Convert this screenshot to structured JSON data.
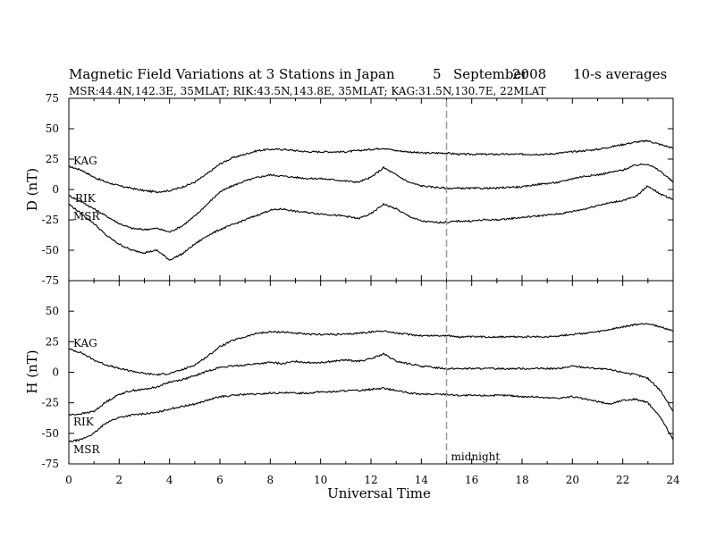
{
  "header": {
    "title": "Magnetic Field Variations at 3 Stations in Japan",
    "day": "5",
    "month": "September",
    "year": "2008",
    "averaging": "10-s averages",
    "stations": "MSR:44.4N,142.3E, 35MLAT;  RIK:43.5N,143.8E, 35MLAT;  KAG:31.5N,130.7E, 22MLAT"
  },
  "chart_data": [
    {
      "type": "line",
      "panel": "top",
      "ylabel": "D (nT)",
      "xlabel": "",
      "xlim": [
        0,
        24
      ],
      "ylim": [
        -75,
        75
      ],
      "yticks": [
        "75",
        "50",
        "25",
        "0",
        "-25",
        "-50",
        "-75"
      ],
      "series": [
        {
          "name": "KAG",
          "x": [
            0,
            0.5,
            1,
            1.5,
            2,
            2.5,
            3,
            3.5,
            4,
            4.5,
            5,
            5.5,
            6,
            6.5,
            7,
            7.5,
            8,
            8.5,
            9,
            9.5,
            10,
            10.5,
            11,
            11.5,
            12,
            12.5,
            13,
            13.5,
            14,
            14.5,
            15,
            15.5,
            16,
            16.5,
            17,
            17.5,
            18,
            18.5,
            19,
            19.5,
            20,
            20.5,
            21,
            21.5,
            22,
            22.5,
            23,
            23.5,
            24
          ],
          "values": [
            19,
            16,
            10,
            6,
            3,
            1,
            -1,
            -2,
            -1,
            2,
            6,
            13,
            21,
            26,
            29,
            32,
            33,
            33,
            32,
            31,
            31,
            31,
            31,
            32,
            33,
            34,
            32,
            31,
            30,
            30,
            30,
            29,
            29,
            29,
            29,
            29,
            29,
            29,
            29,
            30,
            31,
            32,
            33,
            35,
            37,
            39,
            40,
            37,
            34
          ]
        },
        {
          "name": "RIK",
          "x": [
            0,
            0.5,
            1,
            1.5,
            2,
            2.5,
            3,
            3.5,
            4,
            4.5,
            5,
            5.5,
            6,
            6.5,
            7,
            7.5,
            8,
            8.5,
            9,
            9.5,
            10,
            10.5,
            11,
            11.5,
            12,
            12.5,
            13,
            13.5,
            14,
            14.5,
            15,
            15.5,
            16,
            16.5,
            17,
            17.5,
            18,
            18.5,
            19,
            19.5,
            20,
            20.5,
            21,
            21.5,
            22,
            22.5,
            23,
            23.5,
            24
          ],
          "values": [
            -5,
            -10,
            -16,
            -22,
            -28,
            -32,
            -33,
            -32,
            -35,
            -30,
            -22,
            -12,
            -2,
            3,
            7,
            10,
            12,
            11,
            10,
            9,
            9,
            8,
            7,
            6,
            10,
            18,
            12,
            6,
            3,
            2,
            1,
            1,
            1,
            1,
            1,
            2,
            2,
            4,
            5,
            6,
            9,
            11,
            12,
            14,
            16,
            20,
            21,
            15,
            6
          ]
        },
        {
          "name": "MSR",
          "x": [
            0,
            0.5,
            1,
            1.5,
            2,
            2.5,
            3,
            3.5,
            4,
            4.5,
            5,
            5.5,
            6,
            6.5,
            7,
            7.5,
            8,
            8.5,
            9,
            9.5,
            10,
            10.5,
            11,
            11.5,
            12,
            12.5,
            13,
            13.5,
            14,
            14.5,
            15,
            15.5,
            16,
            16.5,
            17,
            17.5,
            18,
            18.5,
            19,
            19.5,
            20,
            20.5,
            21,
            21.5,
            22,
            22.5,
            23,
            23.5,
            24
          ],
          "values": [
            -12,
            -20,
            -28,
            -38,
            -45,
            -50,
            -52,
            -50,
            -58,
            -53,
            -45,
            -38,
            -33,
            -29,
            -25,
            -21,
            -17,
            -16,
            -18,
            -19,
            -20,
            -21,
            -22,
            -24,
            -20,
            -12,
            -16,
            -22,
            -26,
            -27,
            -27,
            -26,
            -26,
            -25,
            -25,
            -24,
            -23,
            -22,
            -21,
            -20,
            -18,
            -16,
            -13,
            -11,
            -9,
            -6,
            3,
            -4,
            -8
          ]
        }
      ]
    },
    {
      "type": "line",
      "panel": "bottom",
      "ylabel": "H (nT)",
      "xlabel": "Universal Time",
      "xlim": [
        0,
        24
      ],
      "ylim": [
        -75,
        75
      ],
      "yticks": [
        "50",
        "25",
        "0",
        "-25",
        "-50",
        "-75"
      ],
      "xticks": [
        "0",
        "2",
        "4",
        "6",
        "8",
        "10",
        "12",
        "14",
        "16",
        "18",
        "20",
        "22",
        "24"
      ],
      "series": [
        {
          "name": "KAG",
          "x": [
            0,
            0.5,
            1,
            1.5,
            2,
            2.5,
            3,
            3.5,
            4,
            4.5,
            5,
            5.5,
            6,
            6.5,
            7,
            7.5,
            8,
            8.5,
            9,
            9.5,
            10,
            10.5,
            11,
            11.5,
            12,
            12.5,
            13,
            13.5,
            14,
            14.5,
            15,
            15.5,
            16,
            16.5,
            17,
            17.5,
            18,
            18.5,
            19,
            19.5,
            20,
            20.5,
            21,
            21.5,
            22,
            22.5,
            23,
            23.5,
            24
          ],
          "values": [
            19,
            16,
            10,
            6,
            3,
            1,
            -1,
            -2,
            -1,
            2,
            6,
            13,
            21,
            26,
            29,
            32,
            33,
            33,
            32,
            31,
            31,
            31,
            31,
            32,
            33,
            34,
            32,
            31,
            30,
            30,
            30,
            29,
            29,
            29,
            29,
            29,
            29,
            29,
            29,
            30,
            31,
            32,
            33,
            35,
            37,
            39,
            40,
            37,
            34
          ]
        },
        {
          "name": "RIK",
          "x": [
            0,
            0.5,
            1,
            1.5,
            2,
            2.5,
            3,
            3.5,
            4,
            4.5,
            5,
            5.5,
            6,
            6.5,
            7,
            7.5,
            8,
            8.5,
            9,
            9.5,
            10,
            10.5,
            11,
            11.5,
            12,
            12.5,
            13,
            13.5,
            14,
            14.5,
            15,
            15.5,
            16,
            16.5,
            17,
            17.5,
            18,
            18.5,
            19,
            19.5,
            20,
            20.5,
            21,
            21.5,
            22,
            22.5,
            23,
            23.5,
            24
          ],
          "values": [
            -35,
            -34,
            -32,
            -24,
            -18,
            -15,
            -14,
            -12,
            -8,
            -6,
            -3,
            1,
            4,
            5,
            6,
            7,
            8,
            7,
            9,
            8,
            8,
            9,
            10,
            9,
            11,
            15,
            9,
            7,
            5,
            4,
            3,
            3,
            3,
            3,
            3,
            3,
            3,
            3,
            3,
            3,
            5,
            4,
            3,
            2,
            0,
            -2,
            -5,
            -15,
            -32
          ]
        },
        {
          "name": "MSR",
          "x": [
            0,
            0.5,
            1,
            1.5,
            2,
            2.5,
            3,
            3.5,
            4,
            4.5,
            5,
            5.5,
            6,
            6.5,
            7,
            7.5,
            8,
            8.5,
            9,
            9.5,
            10,
            10.5,
            11,
            11.5,
            12,
            12.5,
            13,
            13.5,
            14,
            14.5,
            15,
            15.5,
            16,
            16.5,
            17,
            17.5,
            18,
            18.5,
            19,
            19.5,
            20,
            20.5,
            21,
            21.5,
            22,
            22.5,
            23,
            23.5,
            24
          ],
          "values": [
            -57,
            -55,
            -50,
            -41,
            -37,
            -35,
            -34,
            -33,
            -30,
            -28,
            -26,
            -23,
            -20,
            -19,
            -18,
            -18,
            -17,
            -17,
            -17,
            -17,
            -16,
            -16,
            -15,
            -15,
            -14,
            -13,
            -15,
            -17,
            -18,
            -18,
            -18,
            -19,
            -19,
            -19,
            -19,
            -19,
            -20,
            -20,
            -21,
            -21,
            -20,
            -22,
            -24,
            -26,
            -23,
            -22,
            -25,
            -37,
            -55
          ]
        }
      ]
    }
  ],
  "marker": {
    "x": 15,
    "label": "midnight"
  }
}
